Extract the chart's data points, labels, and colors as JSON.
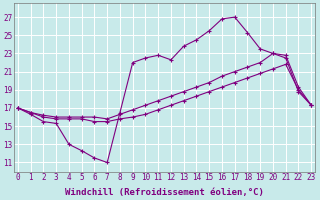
{
  "bg_color": "#c8eaea",
  "grid_color": "#ffffff",
  "line_color": "#800080",
  "xlabel": "Windchill (Refroidissement éolien,°C)",
  "xlabel_fontsize": 6.5,
  "tick_fontsize": 5.5,
  "yticks": [
    11,
    13,
    15,
    17,
    19,
    21,
    23,
    25,
    27
  ],
  "xticks": [
    0,
    1,
    2,
    3,
    4,
    5,
    6,
    7,
    8,
    9,
    10,
    11,
    12,
    13,
    14,
    15,
    16,
    17,
    18,
    19,
    20,
    21,
    22,
    23
  ],
  "xlim": [
    -0.3,
    23.3
  ],
  "ylim": [
    10.0,
    28.5
  ],
  "series1_x": [
    0,
    1,
    2,
    3,
    4,
    5,
    6,
    7,
    8,
    9,
    10,
    11,
    12,
    13,
    14,
    15,
    16,
    17,
    18,
    19,
    20,
    21,
    22,
    23
  ],
  "series1_y": [
    17.0,
    16.3,
    15.5,
    15.3,
    13.0,
    12.3,
    11.5,
    11.0,
    16.5,
    22.0,
    22.5,
    22.8,
    22.3,
    23.8,
    24.5,
    25.5,
    26.8,
    27.0,
    25.3,
    23.5,
    23.0,
    22.5,
    18.8,
    17.3
  ],
  "series2_x": [
    0,
    1,
    2,
    3,
    4,
    5,
    6,
    7,
    8,
    9,
    10,
    11,
    12,
    13,
    14,
    15,
    16,
    17,
    18,
    19,
    20,
    21,
    22,
    23
  ],
  "series2_y": [
    17.0,
    16.5,
    16.2,
    16.0,
    16.0,
    16.0,
    16.0,
    15.8,
    16.3,
    16.8,
    17.3,
    17.8,
    18.3,
    18.8,
    19.3,
    19.8,
    20.5,
    21.0,
    21.5,
    22.0,
    23.0,
    22.8,
    19.3,
    17.3
  ],
  "series3_x": [
    0,
    1,
    2,
    3,
    4,
    5,
    6,
    7,
    8,
    9,
    10,
    11,
    12,
    13,
    14,
    15,
    16,
    17,
    18,
    19,
    20,
    21,
    22,
    23
  ],
  "series3_y": [
    17.0,
    16.5,
    16.0,
    15.8,
    15.8,
    15.8,
    15.5,
    15.5,
    15.8,
    16.0,
    16.3,
    16.8,
    17.3,
    17.8,
    18.3,
    18.8,
    19.3,
    19.8,
    20.3,
    20.8,
    21.3,
    21.8,
    19.0,
    17.3
  ]
}
